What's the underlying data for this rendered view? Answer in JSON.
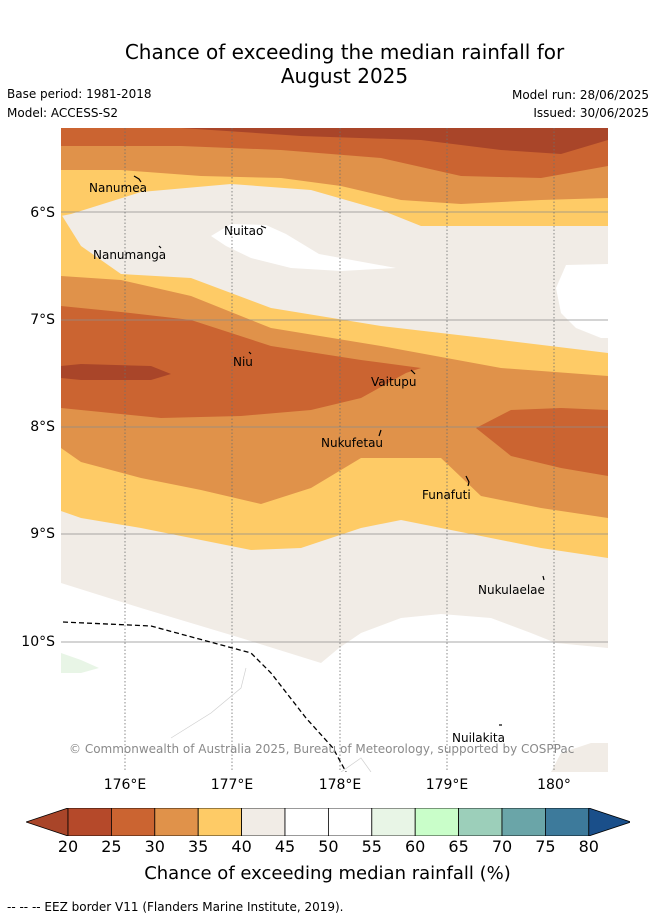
{
  "title_line1": "Chance of exceeding the median rainfall for",
  "title_line2": "August 2025",
  "base_period": "Base period: 1981-2018",
  "model": "Model: ACCESS-S2",
  "model_run": "Model run: 28/06/2025",
  "issued": "Issued: 30/06/2025",
  "y_ticks": [
    "6°S",
    "7°S",
    "8°S",
    "9°S",
    "10°S"
  ],
  "x_ticks": [
    "176°E",
    "177°E",
    "178°E",
    "179°E",
    "180°"
  ],
  "islands": [
    "Nanumea",
    "Nuitao",
    "Nanumanga",
    "Niu",
    "Vaitupu",
    "Nukufetau",
    "Funafuti",
    "Nukulaelae",
    "Nuilakita"
  ],
  "copyright": "© Commonwealth of Australia 2025, Bureau of Meteorology, supported by COSPPac",
  "colorbar": {
    "ticks": [
      "20",
      "25",
      "30",
      "35",
      "40",
      "45",
      "50",
      "55",
      "60",
      "65",
      "70",
      "75",
      "80"
    ],
    "colors": [
      "#a94529",
      "#b5492a",
      "#cb6431",
      "#e0924a",
      "#fecb66",
      "#f1ece6",
      "#ffffff",
      "#ffffff",
      "#e8f5e6",
      "#c9fec9",
      "#9ccfba",
      "#6aa5a8",
      "#3d7a9b",
      "#1a4f8a"
    ],
    "label": "Chance of exceeding median rainfall (%)"
  },
  "footnote": "--  --  -- EEZ border V11 (Flanders Marine Institute, 2019)."
}
